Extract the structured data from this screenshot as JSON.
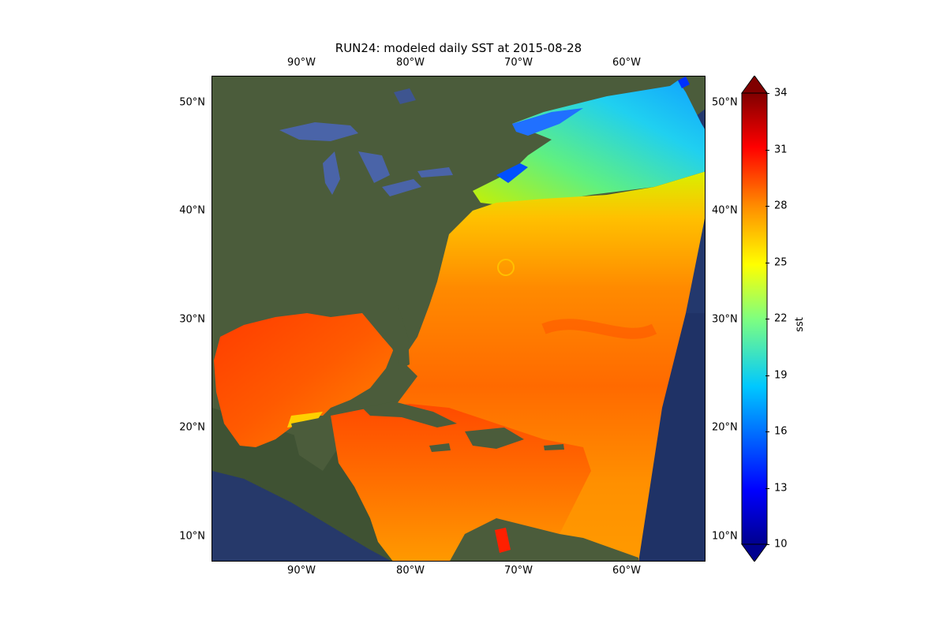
{
  "title": "RUN24: modeled daily SST at 2015-08-28",
  "lon_ticks": [
    "90°W",
    "80°W",
    "70°W",
    "60°W"
  ],
  "lat_ticks": [
    "50°N",
    "40°N",
    "30°N",
    "20°N",
    "10°N"
  ],
  "colorbar": {
    "label": "sst",
    "ticks": [
      "34",
      "31",
      "28",
      "25",
      "22",
      "19",
      "16",
      "13",
      "10"
    ],
    "range": [
      10,
      34
    ],
    "colormap": "jet",
    "extend": "both"
  },
  "map": {
    "projection": "PlateCarree",
    "extent_lon": [
      -98.3,
      -52.8
    ],
    "extent_lat": [
      7.8,
      52.3
    ],
    "basemap": "satellite imagery",
    "variable": "sst",
    "colors": {
      "land": "#4a5b3a",
      "deep_ocean_bg": "#1f3266",
      "warm_sst": "#ff4a00",
      "mid_sst": "#ff9a00",
      "cool_sst": "#18c8e8",
      "cold_sst": "#0044ff"
    }
  }
}
